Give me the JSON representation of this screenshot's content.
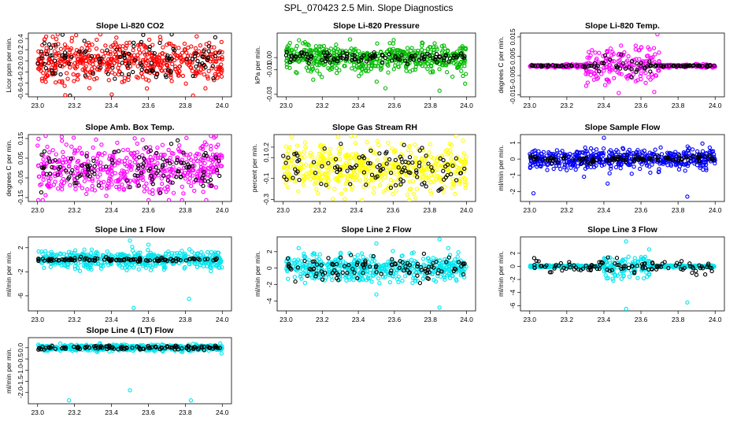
{
  "main_title": "SPL_070423  2.5 Min. Slope Diagnostics",
  "chart_data": [
    {
      "type": "scatter",
      "title": "Slope Li-820 CO2",
      "xlabel": "",
      "ylabel": "Licor ppm per min.",
      "xlim": [
        22.95,
        24.05
      ],
      "ylim": [
        -0.65,
        0.5
      ],
      "x_ticks": [
        "23.0",
        "23.2",
        "23.4",
        "23.6",
        "23.8",
        "24.0"
      ],
      "x_tick_values": [
        23.0,
        23.2,
        23.4,
        23.6,
        23.8,
        24.0
      ],
      "y_ticks": [
        "-0.6",
        "-0.4",
        "-0.2",
        "0.0",
        "0.2",
        "0.4"
      ],
      "y_tick_values": [
        -0.6,
        -0.4,
        -0.2,
        0.0,
        0.2,
        0.4
      ],
      "series": [
        {
          "color": "#ff0000",
          "center": 0.0,
          "spread": 0.18,
          "n": 520,
          "outliers": [
            [
              23.15,
              -0.62
            ]
          ]
        },
        {
          "color": "#000000",
          "center": 0.0,
          "spread": 0.2,
          "n": 110
        }
      ]
    },
    {
      "type": "scatter",
      "title": "Slope Li-820 Pressure",
      "xlabel": "",
      "ylabel": "kPa per min.",
      "xlim": [
        22.95,
        24.05
      ],
      "ylim": [
        -0.032,
        0.02
      ],
      "x_ticks": [
        "23.0",
        "23.2",
        "23.4",
        "23.6",
        "23.8",
        "24.0"
      ],
      "x_tick_values": [
        23.0,
        23.2,
        23.4,
        23.6,
        23.8,
        24.0
      ],
      "y_ticks": [
        "-0.03",
        "-0.01",
        "0.00"
      ],
      "y_tick_values": [
        -0.03,
        -0.01,
        0.0
      ],
      "series": [
        {
          "color": "#00bb00",
          "center": 0.0,
          "spread": 0.006,
          "n": 520,
          "outliers": [
            [
              23.15,
              -0.018
            ],
            [
              23.55,
              -0.025
            ],
            [
              23.85,
              -0.027
            ],
            [
              23.98,
              -0.015
            ]
          ]
        },
        {
          "color": "#000000",
          "center": 0.0,
          "spread": 0.002,
          "n": 110
        }
      ]
    },
    {
      "type": "scatter",
      "title": "Slope Li-820 Temp.",
      "xlabel": "",
      "ylabel": "degrees C per min.",
      "xlim": [
        22.95,
        24.05
      ],
      "ylim": [
        -0.016,
        0.017
      ],
      "x_ticks": [
        "23.0",
        "23.2",
        "23.4",
        "23.6",
        "23.8",
        "24.0"
      ],
      "x_tick_values": [
        23.0,
        23.2,
        23.4,
        23.6,
        23.8,
        24.0
      ],
      "y_ticks": [
        "-0.015",
        "-0.005",
        "0.005",
        "0.015"
      ],
      "y_tick_values": [
        -0.015,
        -0.005,
        0.005,
        0.015
      ],
      "series": [
        {
          "color": "#ff00ff",
          "center": 0.0,
          "spread": 0.005,
          "n": 420,
          "burst": [
            23.3,
            23.7
          ],
          "outliers": [
            [
              23.48,
              -0.014
            ]
          ]
        },
        {
          "color": "#000000",
          "center": 0.0,
          "spread": 0.003,
          "n": 110,
          "burst": [
            23.35,
            23.65
          ]
        }
      ]
    },
    {
      "type": "scatter",
      "title": "Slope Amb. Box Temp.",
      "xlabel": "",
      "ylabel": "degrees C per min.",
      "xlim": [
        22.95,
        24.05
      ],
      "ylim": [
        -0.17,
        0.17
      ],
      "x_ticks": [
        "23.0",
        "23.2",
        "23.4",
        "23.6",
        "23.8",
        "24.0"
      ],
      "x_tick_values": [
        23.0,
        23.2,
        23.4,
        23.6,
        23.8,
        24.0
      ],
      "y_ticks": [
        "-0.15",
        "-0.05",
        "0.05",
        "0.15"
      ],
      "y_tick_values": [
        -0.15,
        -0.05,
        0.05,
        0.15
      ],
      "series": [
        {
          "color": "#ff00ff",
          "center": 0.0,
          "spread": 0.07,
          "n": 520
        },
        {
          "color": "#000000",
          "center": 0.0,
          "spread": 0.05,
          "n": 110
        }
      ]
    },
    {
      "type": "scatter",
      "title": "Slope Gas Stream RH",
      "xlabel": "",
      "ylabel": "percent per min.",
      "xlim": [
        22.95,
        24.05
      ],
      "ylim": [
        -0.32,
        0.32
      ],
      "x_ticks": [
        "23.0",
        "23.2",
        "23.4",
        "23.6",
        "23.8",
        "24.0"
      ],
      "x_tick_values": [
        23.0,
        23.2,
        23.4,
        23.6,
        23.8,
        24.0
      ],
      "y_ticks": [
        "-0.3",
        "-0.1",
        "0.1",
        "0.2"
      ],
      "y_tick_values": [
        -0.3,
        -0.1,
        0.1,
        0.2
      ],
      "series": [
        {
          "color": "#ffff00",
          "center": 0.0,
          "spread": 0.11,
          "n": 520
        },
        {
          "color": "#000000",
          "center": 0.0,
          "spread": 0.1,
          "n": 110
        }
      ]
    },
    {
      "type": "scatter",
      "title": "Slope Sample Flow",
      "xlabel": "",
      "ylabel": "ml/min per min.",
      "xlim": [
        22.95,
        24.05
      ],
      "ylim": [
        -2.6,
        1.5
      ],
      "x_ticks": [
        "23.0",
        "23.2",
        "23.4",
        "23.6",
        "23.8",
        "24.0"
      ],
      "x_tick_values": [
        23.0,
        23.2,
        23.4,
        23.6,
        23.8,
        24.0
      ],
      "y_ticks": [
        "-2",
        "-1",
        "0",
        "1"
      ],
      "y_tick_values": [
        -2,
        -1,
        0,
        1
      ],
      "series": [
        {
          "color": "#0000ff",
          "center": 0.0,
          "spread": 0.3,
          "n": 520,
          "outliers": [
            [
              23.4,
              1.3
            ],
            [
              23.42,
              -1.5
            ],
            [
              23.85,
              -2.3
            ],
            [
              23.02,
              -2.1
            ],
            [
              23.55,
              -0.9
            ]
          ]
        },
        {
          "color": "#000000",
          "center": 0.0,
          "spread": 0.1,
          "n": 110
        }
      ]
    },
    {
      "type": "scatter",
      "title": "Slope Line 1 Flow",
      "xlabel": "",
      "ylabel": "ml/min per min.",
      "xlim": [
        22.95,
        24.05
      ],
      "ylim": [
        -8.5,
        3.8
      ],
      "x_ticks": [
        "23.0",
        "23.2",
        "23.4",
        "23.6",
        "23.8",
        "24.0"
      ],
      "x_tick_values": [
        23.0,
        23.2,
        23.4,
        23.6,
        23.8,
        24.0
      ],
      "y_ticks": [
        "-6",
        "-2",
        "2"
      ],
      "y_tick_values": [
        -6,
        -2,
        2
      ],
      "series": [
        {
          "color": "#00e5ee",
          "center": 0.0,
          "spread": 0.7,
          "n": 520,
          "outliers": [
            [
              23.52,
              -8.0
            ],
            [
              23.82,
              -6.5
            ],
            [
              23.5,
              3.2
            ],
            [
              23.6,
              2.5
            ]
          ]
        },
        {
          "color": "#000000",
          "center": 0.0,
          "spread": 0.15,
          "n": 110
        }
      ]
    },
    {
      "type": "scatter",
      "title": "Slope Line 2 Flow",
      "xlabel": "",
      "ylabel": "ml/min per min.",
      "xlim": [
        22.95,
        24.05
      ],
      "ylim": [
        -5.2,
        3.8
      ],
      "x_ticks": [
        "23.0",
        "23.2",
        "23.4",
        "23.6",
        "23.8",
        "24.0"
      ],
      "x_tick_values": [
        23.0,
        23.2,
        23.4,
        23.6,
        23.8,
        24.0
      ],
      "y_ticks": [
        "-4",
        "-2",
        "0",
        "2"
      ],
      "y_tick_values": [
        -4,
        -2,
        0,
        2
      ],
      "series": [
        {
          "color": "#00e5ee",
          "center": 0.0,
          "spread": 0.8,
          "n": 520,
          "outliers": [
            [
              23.85,
              -4.8
            ],
            [
              23.5,
              -3.2
            ],
            [
              23.85,
              3.5
            ],
            [
              23.5,
              3.0
            ]
          ]
        },
        {
          "color": "#000000",
          "center": 0.0,
          "spread": 0.7,
          "n": 110
        }
      ]
    },
    {
      "type": "scatter",
      "title": "Slope Line 3 Flow",
      "xlabel": "",
      "ylabel": "ml/min per min.",
      "xlim": [
        22.95,
        24.05
      ],
      "ylim": [
        -6.8,
        4.5
      ],
      "x_ticks": [
        "23.0",
        "23.2",
        "23.4",
        "23.6",
        "23.8",
        "24.0"
      ],
      "x_tick_values": [
        23.0,
        23.2,
        23.4,
        23.6,
        23.8,
        24.0
      ],
      "y_ticks": [
        "-6",
        "-4",
        "-2",
        "0",
        "2"
      ],
      "y_tick_values": [
        -6,
        -4,
        -2,
        0,
        2
      ],
      "series": [
        {
          "color": "#00e5ee",
          "center": 0.0,
          "spread": 0.9,
          "n": 520,
          "burst": [
            23.4,
            23.65
          ],
          "outliers": [
            [
              23.52,
              -6.5
            ],
            [
              23.85,
              -5.5
            ],
            [
              23.52,
              3.8
            ]
          ]
        },
        {
          "color": "#000000",
          "center": 0.0,
          "spread": 0.5,
          "n": 110
        }
      ]
    },
    {
      "type": "scatter",
      "title": "Slope Line 4 (LT) Flow",
      "xlabel": "",
      "ylabel": "ml/min per min.",
      "xlim": [
        22.95,
        24.05
      ],
      "ylim": [
        -2.5,
        0.45
      ],
      "x_ticks": [
        "23.0",
        "23.2",
        "23.4",
        "23.6",
        "23.8",
        "24.0"
      ],
      "x_tick_values": [
        23.0,
        23.2,
        23.4,
        23.6,
        23.8,
        24.0
      ],
      "y_ticks": [
        "-2.0",
        "-1.5",
        "-1.0",
        "-0.5",
        "0.0"
      ],
      "y_tick_values": [
        -2.0,
        -1.5,
        -1.0,
        -0.5,
        0.0
      ],
      "series": [
        {
          "color": "#00e5ee",
          "center": 0.0,
          "spread": 0.07,
          "n": 520,
          "outliers": [
            [
              23.17,
              -2.35
            ],
            [
              23.5,
              -1.9
            ],
            [
              23.83,
              -2.35
            ]
          ]
        },
        {
          "color": "#000000",
          "center": 0.0,
          "spread": 0.05,
          "n": 110
        }
      ]
    }
  ]
}
